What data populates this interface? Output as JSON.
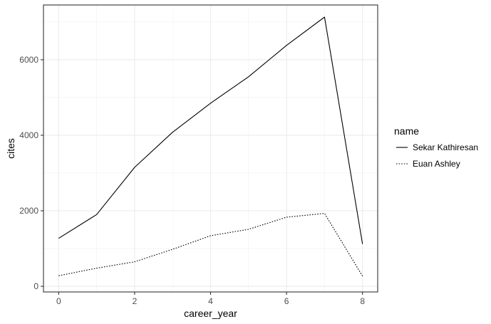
{
  "chart_data": {
    "type": "line",
    "xlabel": "career_year",
    "ylabel": "cites",
    "xlim": [
      -0.4,
      8.4
    ],
    "ylim": [
      -150,
      7450
    ],
    "x_ticks": [
      0,
      2,
      4,
      6,
      8
    ],
    "y_ticks": [
      0,
      2000,
      4000,
      6000
    ],
    "x_tick_labels": [
      "0",
      "2",
      "4",
      "6",
      "8"
    ],
    "y_tick_labels": [
      "0",
      "2000",
      "4000",
      "6000"
    ],
    "grid": true,
    "legend": {
      "title": "name",
      "position": "right"
    },
    "x": [
      0,
      1,
      2,
      3,
      4,
      5,
      6,
      7,
      8
    ],
    "series": [
      {
        "name": "Sekar Kathiresan",
        "linetype": "solid",
        "values": [
          1270,
          1900,
          3150,
          4080,
          4850,
          5550,
          6380,
          7130,
          1120
        ]
      },
      {
        "name": "Euan Ashley",
        "linetype": "dotted",
        "values": [
          280,
          480,
          650,
          980,
          1340,
          1510,
          1830,
          1930,
          270
        ]
      }
    ]
  }
}
